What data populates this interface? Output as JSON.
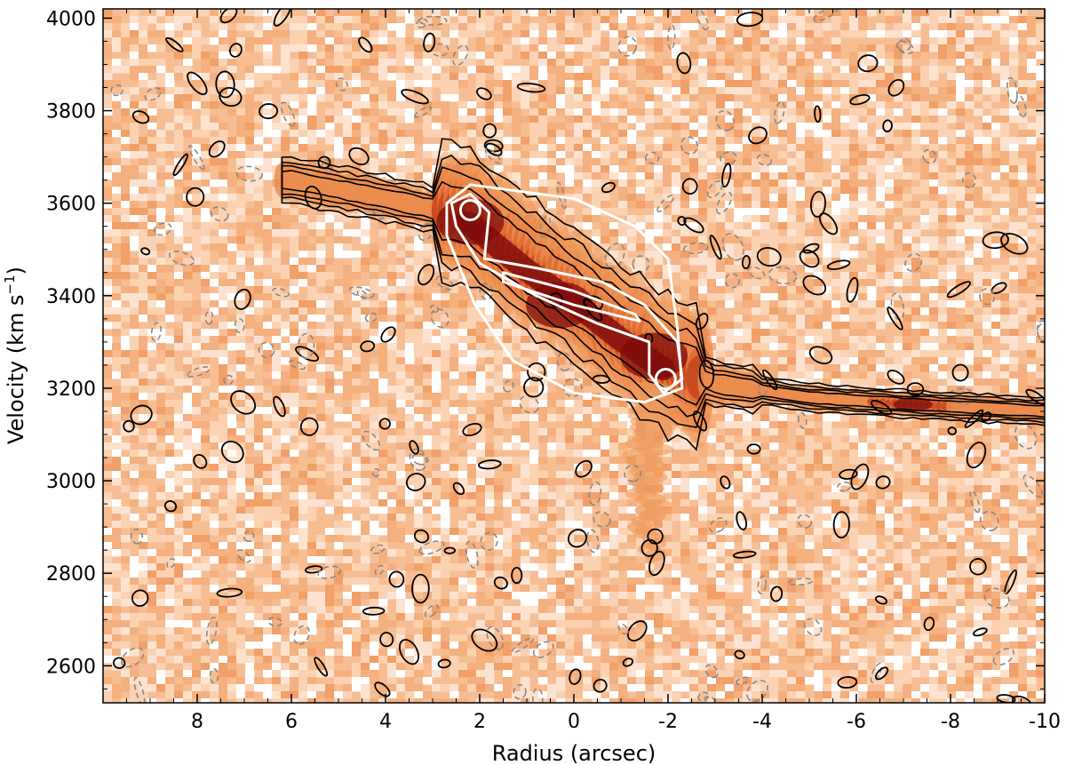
{
  "chart_data": {
    "type": "heatmap",
    "title": "",
    "xlabel": "Radius (arcsec)",
    "ylabel_main": "Velocity (km s",
    "ylabel_sup": "−1",
    "ylabel_close": ")",
    "xlim": [
      10,
      -10
    ],
    "ylim": [
      2520,
      4020
    ],
    "x_ticks": [
      8,
      6,
      4,
      2,
      0,
      -2,
      -4,
      -6,
      -8,
      -10
    ],
    "x_tick_labels": [
      "8",
      "6",
      "4",
      "2",
      "0",
      "-2",
      "-4",
      "-6",
      "-8",
      "-10"
    ],
    "y_ticks": [
      2600,
      2800,
      3000,
      3200,
      3400,
      3600,
      3800,
      4000
    ],
    "y_tick_labels": [
      "2600",
      "2800",
      "3000",
      "3200",
      "3400",
      "3600",
      "3800",
      "4000"
    ],
    "grid": false,
    "colormap": [
      "#ffffff",
      "#f7c49a",
      "#f08a44",
      "#d8501d",
      "#8a0f0a"
    ],
    "colors": {
      "background_noise": "#f7be94",
      "emission_outer": "#ef9a5c",
      "emission_mid": "#e0602a",
      "emission_core": "#7e0b0b",
      "positive_contour": "#000000",
      "negative_contour": "#888888",
      "model_contour": "#ffffff"
    },
    "emission_ridge": [
      {
        "x": 6.0,
        "y": 3650
      },
      {
        "x": 4.0,
        "y": 3610
      },
      {
        "x": 2.2,
        "y": 3570
      },
      {
        "x": 1.0,
        "y": 3470
      },
      {
        "x": 0.0,
        "y": 3400
      },
      {
        "x": -1.0,
        "y": 3320
      },
      {
        "x": -2.0,
        "y": 3250
      },
      {
        "x": -3.0,
        "y": 3210
      },
      {
        "x": -5.0,
        "y": 3180
      },
      {
        "x": -7.2,
        "y": 3165
      },
      {
        "x": -10.0,
        "y": 3150
      }
    ],
    "emission_peaks": [
      {
        "x": 2.2,
        "y": 3560
      },
      {
        "x": 0.3,
        "y": 3380
      },
      {
        "x": -1.7,
        "y": 3270
      },
      {
        "x": -7.2,
        "y": 3165
      }
    ],
    "model_peaks": [
      {
        "x": 2.2,
        "y": 3585
      },
      {
        "x": -1.95,
        "y": 3220
      }
    ]
  }
}
